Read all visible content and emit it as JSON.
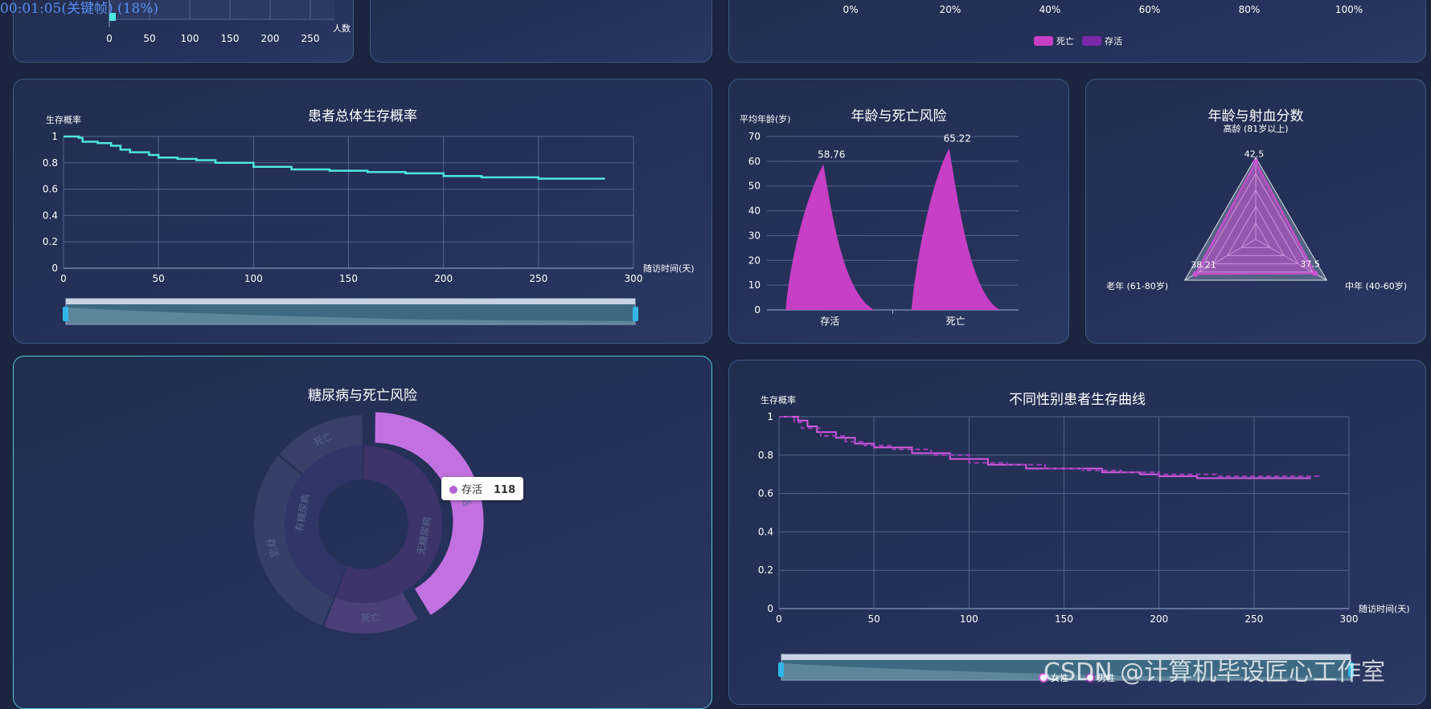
{
  "overlay_timestamp": "00:01:05(关键帧) (18%)",
  "watermark": "CSDN @计算机毕设匠心工作室",
  "tooltip": {
    "label": "存活",
    "value": "118"
  },
  "chart_data": [
    {
      "id": "top_left_partial",
      "type": "bar",
      "x_ticks": [
        "0",
        "50",
        "100",
        "150",
        "200",
        "250"
      ],
      "xlabel": "人数"
    },
    {
      "id": "top_right_partial",
      "type": "bar",
      "x_ticks": [
        "0%",
        "20%",
        "40%",
        "60%",
        "80%",
        "100%"
      ],
      "legend": [
        "死亡",
        "存活"
      ],
      "colors": [
        "#c73fc4",
        "#7a27a8"
      ]
    },
    {
      "id": "overall_survival",
      "type": "line",
      "title": "患者总体生存概率",
      "ylabel": "生存概率",
      "xlabel": "随访时间(天)",
      "xlim": [
        0,
        300
      ],
      "ylim": [
        0,
        1
      ],
      "x_ticks": [
        "0",
        "50",
        "100",
        "150",
        "200",
        "250",
        "300"
      ],
      "y_ticks": [
        "0",
        "0.2",
        "0.4",
        "0.6",
        "0.8",
        "1"
      ],
      "color": "#4ee6e0",
      "points": [
        [
          0,
          1
        ],
        [
          8,
          0.99
        ],
        [
          10,
          0.96
        ],
        [
          18,
          0.95
        ],
        [
          25,
          0.93
        ],
        [
          30,
          0.9
        ],
        [
          35,
          0.88
        ],
        [
          45,
          0.86
        ],
        [
          50,
          0.84
        ],
        [
          60,
          0.83
        ],
        [
          70,
          0.82
        ],
        [
          80,
          0.8
        ],
        [
          100,
          0.77
        ],
        [
          120,
          0.75
        ],
        [
          140,
          0.74
        ],
        [
          160,
          0.73
        ],
        [
          180,
          0.72
        ],
        [
          200,
          0.7
        ],
        [
          220,
          0.69
        ],
        [
          250,
          0.68
        ],
        [
          285,
          0.68
        ]
      ]
    },
    {
      "id": "age_death_risk",
      "type": "bar",
      "title": "年龄与死亡风险",
      "ylabel": "平均年龄(岁)",
      "categories": [
        "存活",
        "死亡"
      ],
      "values": [
        58.76,
        65.22
      ],
      "ylim": [
        0,
        70
      ],
      "y_ticks": [
        "0",
        "10",
        "20",
        "30",
        "40",
        "50",
        "60",
        "70"
      ],
      "color": "#c73fc4"
    },
    {
      "id": "age_ef_radar",
      "type": "radar",
      "title": "年龄与射血分数",
      "indicators": [
        "高龄 (81岁以上)",
        "中年 (40-60岁)",
        "老年 (61-80岁)"
      ],
      "values": [
        42.5,
        37.5,
        38.21
      ],
      "value_labels": [
        "42.5",
        "37.5",
        "38.21"
      ],
      "color": "#c94fd0"
    },
    {
      "id": "diabetes_death_risk",
      "type": "pie",
      "title": "糖尿病与死亡风险",
      "outer_ring": [
        {
          "label": "存活",
          "value": 118
        },
        {
          "label": "死亡",
          "value": 41
        },
        {
          "label": "存活",
          "value": 85
        },
        {
          "label": "死亡",
          "value": 40
        }
      ],
      "inner_ring": [
        {
          "label": "无糖尿病",
          "value": 159
        },
        {
          "label": "有糖尿病",
          "value": 125
        }
      ]
    },
    {
      "id": "gender_survival",
      "type": "line",
      "title": "不同性别患者生存曲线",
      "ylabel": "生存概率",
      "xlabel": "随访时间(天)",
      "xlim": [
        0,
        300
      ],
      "ylim": [
        0,
        1
      ],
      "x_ticks": [
        "0",
        "50",
        "100",
        "150",
        "200",
        "250",
        "300"
      ],
      "y_ticks": [
        "0",
        "0.2",
        "0.4",
        "0.6",
        "0.8",
        "1"
      ],
      "legend": [
        "女性",
        "男性"
      ],
      "series": [
        {
          "name": "女性",
          "color": "#d25ae0",
          "dashed": false,
          "points": [
            [
              0,
              1
            ],
            [
              10,
              0.98
            ],
            [
              15,
              0.95
            ],
            [
              20,
              0.92
            ],
            [
              30,
              0.89
            ],
            [
              40,
              0.86
            ],
            [
              50,
              0.84
            ],
            [
              70,
              0.81
            ],
            [
              90,
              0.78
            ],
            [
              110,
              0.75
            ],
            [
              130,
              0.73
            ],
            [
              150,
              0.73
            ],
            [
              170,
              0.71
            ],
            [
              190,
              0.7
            ],
            [
              200,
              0.69
            ],
            [
              220,
              0.68
            ],
            [
              280,
              0.68
            ]
          ]
        },
        {
          "name": "男性",
          "color": "#9b3fb8",
          "dashed": true,
          "points": [
            [
              0,
              1
            ],
            [
              8,
              0.97
            ],
            [
              12,
              0.94
            ],
            [
              22,
              0.9
            ],
            [
              35,
              0.87
            ],
            [
              45,
              0.85
            ],
            [
              60,
              0.83
            ],
            [
              80,
              0.8
            ],
            [
              100,
              0.76
            ],
            [
              120,
              0.75
            ],
            [
              140,
              0.73
            ],
            [
              160,
              0.72
            ],
            [
              180,
              0.71
            ],
            [
              200,
              0.7
            ],
            [
              230,
              0.69
            ],
            [
              285,
              0.69
            ]
          ]
        }
      ]
    }
  ]
}
